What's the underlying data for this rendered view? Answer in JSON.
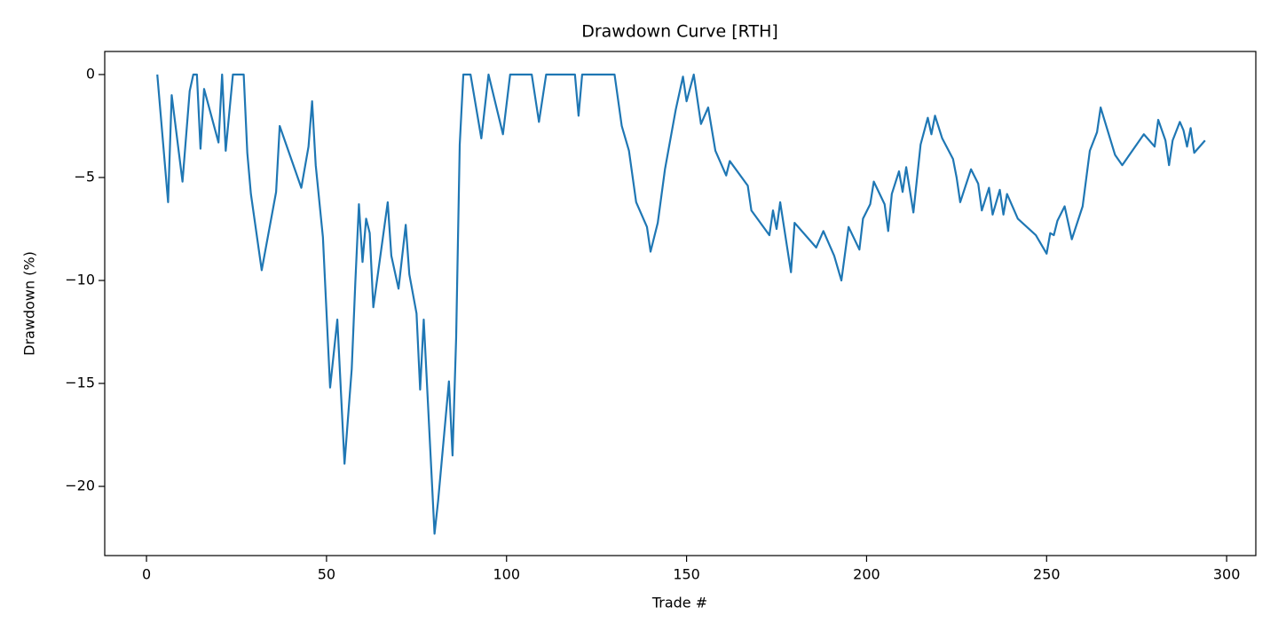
{
  "chart_data": {
    "type": "line",
    "title": "Drawdown Curve [RTH]",
    "x_label": "Trade #",
    "y_label": "Drawdown (%)",
    "x": [
      3,
      6,
      7,
      10,
      12,
      13,
      14,
      15,
      16,
      20,
      21,
      22,
      24,
      27,
      28,
      29,
      32,
      36,
      37,
      43,
      45,
      46,
      47,
      49,
      51,
      53,
      55,
      57,
      58,
      59,
      60,
      61,
      62,
      63,
      67,
      68,
      70,
      72,
      73,
      75,
      76,
      77,
      80,
      81,
      84,
      85,
      86,
      87,
      88,
      90,
      93,
      95,
      99,
      101,
      107,
      109,
      111,
      119,
      120,
      121,
      130,
      132,
      134,
      136,
      139,
      140,
      142,
      144,
      147,
      149,
      150,
      152,
      154,
      156,
      158,
      161,
      162,
      167,
      168,
      173,
      174,
      175,
      176,
      179,
      180,
      186,
      188,
      191,
      193,
      195,
      198,
      199,
      201,
      202,
      205,
      206,
      207,
      209,
      210,
      211,
      213,
      215,
      217,
      218,
      219,
      221,
      224,
      225,
      226,
      229,
      231,
      232,
      234,
      235,
      237,
      238,
      239,
      242,
      247,
      250,
      251,
      252,
      253,
      255,
      257,
      260,
      262,
      264,
      265,
      269,
      271,
      275,
      277,
      280,
      281,
      283,
      284,
      285,
      287,
      288,
      289,
      290,
      291,
      294
    ],
    "series": [
      {
        "name": "Drawdown",
        "color": "#1f77b4",
        "values": [
          0,
          -6.2,
          -1.0,
          -5.2,
          -0.8,
          0,
          0,
          -3.6,
          -0.7,
          -3.3,
          0,
          -3.7,
          0,
          0,
          -3.8,
          -5.8,
          -9.5,
          -5.7,
          -2.5,
          -5.5,
          -3.5,
          -1.3,
          -4.4,
          -7.9,
          -15.2,
          -11.9,
          -18.9,
          -14.3,
          -10.1,
          -6.3,
          -9.1,
          -7.0,
          -7.7,
          -11.3,
          -6.2,
          -8.8,
          -10.4,
          -7.3,
          -9.7,
          -11.6,
          -15.3,
          -11.9,
          -22.3,
          -20.7,
          -14.9,
          -18.5,
          -12.8,
          -3.4,
          0,
          0,
          -3.1,
          0,
          -2.9,
          0,
          0,
          -2.3,
          0,
          0,
          -2.0,
          0,
          0,
          -2.5,
          -3.7,
          -6.2,
          -7.4,
          -8.6,
          -7.2,
          -4.6,
          -1.7,
          -0.1,
          -1.3,
          0,
          -2.4,
          -1.6,
          -3.7,
          -4.9,
          -4.2,
          -5.4,
          -6.6,
          -7.8,
          -6.6,
          -7.5,
          -6.2,
          -9.6,
          -7.2,
          -8.4,
          -7.6,
          -8.8,
          -10.0,
          -7.4,
          -8.5,
          -7.0,
          -6.3,
          -5.2,
          -6.3,
          -7.6,
          -5.8,
          -4.7,
          -5.7,
          -4.5,
          -6.7,
          -3.4,
          -2.1,
          -2.9,
          -2.0,
          -3.1,
          -4.1,
          -5.0,
          -6.2,
          -4.6,
          -5.3,
          -6.6,
          -5.5,
          -6.8,
          -5.6,
          -6.8,
          -5.8,
          -7.0,
          -7.8,
          -8.7,
          -7.7,
          -7.8,
          -7.1,
          -6.4,
          -8.0,
          -6.4,
          -3.7,
          -2.8,
          -1.6,
          -3.9,
          -4.4,
          -3.4,
          -2.9,
          -3.5,
          -2.2,
          -3.2,
          -4.4,
          -3.2,
          -2.3,
          -2.7,
          -3.5,
          -2.6,
          -3.8,
          -3.2
        ]
      }
    ],
    "xlim": [
      -11.6,
      308.1
    ],
    "ylim": [
      -23.36,
      1.12
    ],
    "xticks": [
      0,
      50,
      100,
      150,
      200,
      250,
      300
    ],
    "yticks": [
      0,
      {
        "value": -5,
        "label": "−5"
      },
      {
        "value": -10,
        "label": "−10"
      },
      {
        "value": -15,
        "label": "−15"
      },
      {
        "value": -20,
        "label": "−20"
      }
    ],
    "grid": false
  }
}
